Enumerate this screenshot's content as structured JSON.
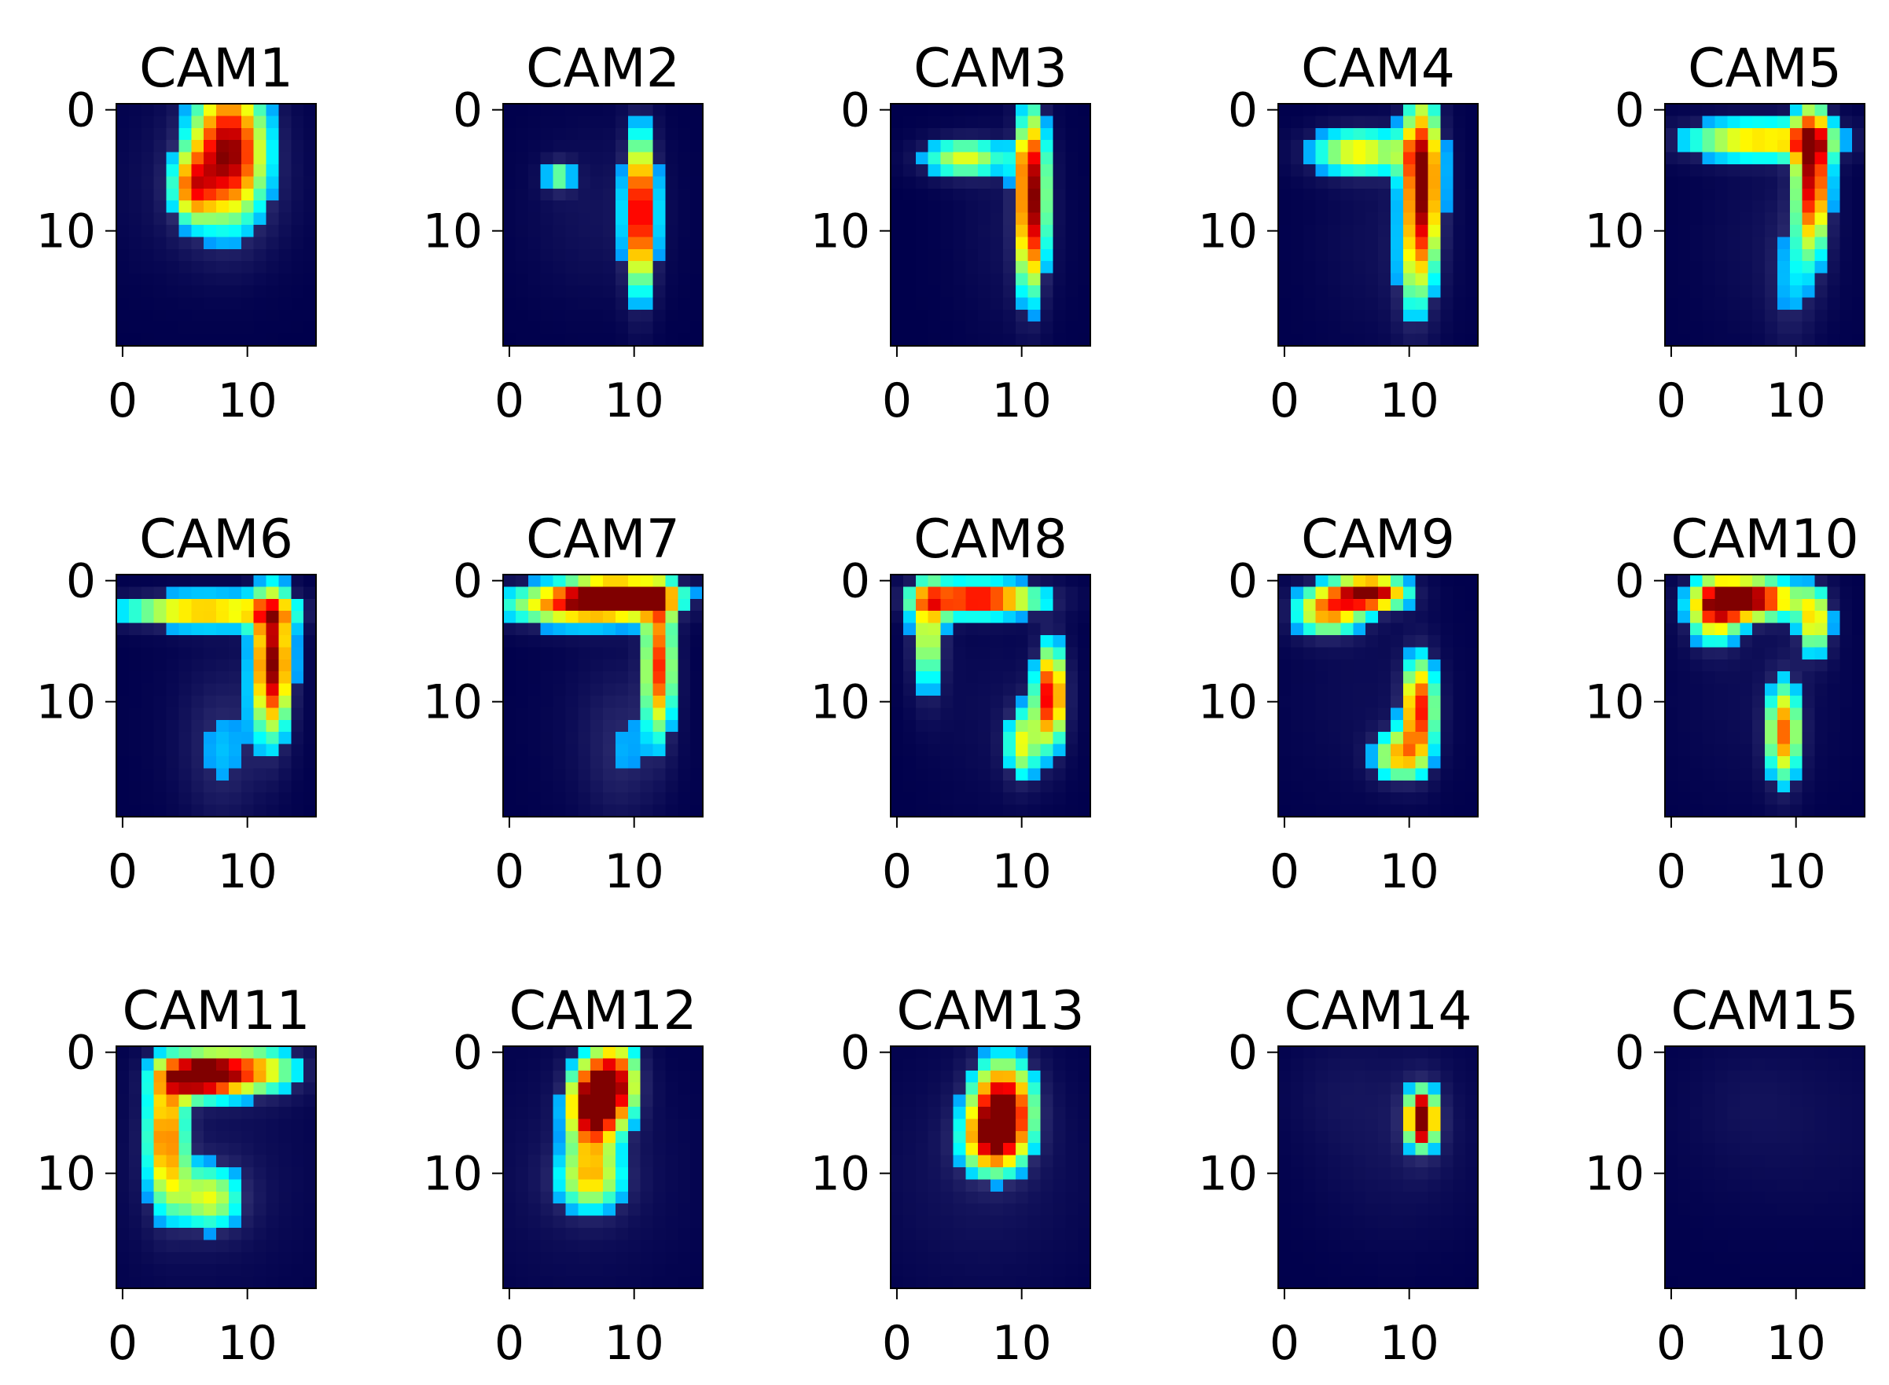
{
  "figure": {
    "title": ""
  },
  "chart_data": {
    "type": "heatmap",
    "layout": {
      "rows": 3,
      "cols": 5
    },
    "colormap": "jet",
    "background_color": "#00004c",
    "grid": false,
    "panels": [
      {
        "title": "CAM1",
        "description_blobs": [
          [
            3.5,
            8.5,
            4.2,
            2.2,
            1.0
          ],
          [
            6.5,
            5.5,
            2.0,
            1.2,
            0.55
          ]
        ],
        "haze": [
          [
            6.5,
            7,
            5,
            5,
            0.18
          ]
        ]
      },
      {
        "title": "CAM2",
        "description_blobs": [
          [
            8.5,
            10.5,
            4.5,
            0.9,
            1.0
          ],
          [
            5.5,
            4.0,
            1.0,
            0.9,
            0.45
          ]
        ],
        "haze": [
          [
            8.5,
            7,
            5,
            4,
            0.15
          ]
        ]
      },
      {
        "title": "CAM3",
        "description_blobs": [
          [
            7.0,
            10.8,
            5.0,
            0.9,
            1.0
          ],
          [
            4.0,
            5.5,
            1.2,
            2.5,
            0.55
          ],
          [
            13,
            10.5,
            3,
            0.8,
            0.15
          ]
        ],
        "haze": [
          [
            10,
            9,
            6,
            3,
            0.12
          ]
        ]
      },
      {
        "title": "CAM4",
        "description_blobs": [
          [
            6.5,
            11.0,
            5.5,
            1.1,
            1.0
          ],
          [
            3.5,
            6.0,
            1.4,
            2.8,
            0.6
          ],
          [
            14,
            10,
            3.5,
            1.0,
            0.2
          ]
        ],
        "haze": [
          [
            11,
            8,
            6,
            4,
            0.12
          ]
        ]
      },
      {
        "title": "CAM5",
        "description_blobs": [
          [
            5.5,
            11.3,
            4.5,
            1.0,
            0.95
          ],
          [
            2.5,
            7.0,
            1.2,
            4.5,
            0.65
          ],
          [
            14,
            9.5,
            4,
            1.2,
            0.22
          ]
        ],
        "haze": [
          [
            11,
            8,
            6,
            4,
            0.12
          ]
        ]
      },
      {
        "title": "CAM6",
        "description_blobs": [
          [
            6.8,
            12.0,
            4.2,
            1.1,
            1.0
          ],
          [
            2.5,
            6.5,
            1.0,
            5.0,
            0.7
          ],
          [
            14,
            8,
            4,
            2,
            0.22
          ]
        ],
        "haze": [
          [
            12,
            8,
            6,
            4,
            0.1
          ]
        ]
      },
      {
        "title": "CAM7",
        "description_blobs": [
          [
            1.2,
            9.0,
            1.0,
            3.0,
            0.95
          ],
          [
            2.0,
            5.5,
            1.3,
            4.5,
            0.7
          ],
          [
            7.0,
            12.0,
            4.0,
            0.9,
            0.8
          ],
          [
            14,
            9,
            4,
            2,
            0.2
          ]
        ],
        "haze": [
          [
            12,
            8,
            6,
            4,
            0.1
          ]
        ]
      },
      {
        "title": "CAM8",
        "description_blobs": [
          [
            1.5,
            6.5,
            1.0,
            3.5,
            0.95
          ],
          [
            9.5,
            12.3,
            3.0,
            0.9,
            0.9
          ],
          [
            13.5,
            10.0,
            2.2,
            1.0,
            0.55
          ],
          [
            4.5,
            2.5,
            3.5,
            1.0,
            0.55
          ]
        ],
        "haze": [
          [
            11,
            8,
            6,
            4,
            0.1
          ]
        ]
      },
      {
        "title": "CAM9",
        "description_blobs": [
          [
            1.0,
            7.0,
            1.0,
            2.0,
            1.0
          ],
          [
            2.5,
            3.5,
            1.5,
            2.0,
            0.7
          ],
          [
            10.5,
            10.8,
            3.0,
            1.0,
            0.85
          ],
          [
            14.5,
            9.0,
            1.5,
            1.4,
            0.6
          ]
        ],
        "haze": [
          [
            10,
            7,
            6,
            5,
            0.1
          ]
        ]
      },
      {
        "title": "CAM10",
        "description_blobs": [
          [
            1.5,
            6.5,
            1.2,
            2.5,
            1.0
          ],
          [
            2.5,
            3.5,
            2.0,
            1.5,
            0.7
          ],
          [
            12.5,
            9.0,
            3.0,
            1.0,
            0.75
          ],
          [
            3.5,
            11.5,
            2.0,
            1.0,
            0.6
          ]
        ],
        "haze": [
          [
            10,
            7,
            6,
            5,
            0.1
          ]
        ]
      },
      {
        "title": "CAM11",
        "description_blobs": [
          [
            2.0,
            6.0,
            1.2,
            2.0,
            1.0
          ],
          [
            7.0,
            3.5,
            4.0,
            1.2,
            0.75
          ],
          [
            1.5,
            10.0,
            1.5,
            3.0,
            0.7
          ],
          [
            12.0,
            7.0,
            2.0,
            2.0,
            0.55
          ]
        ],
        "haze": [
          [
            10,
            7,
            7,
            6,
            0.14
          ]
        ]
      },
      {
        "title": "CAM12",
        "description_blobs": [
          [
            4.5,
            6.5,
            2.5,
            1.4,
            1.0
          ],
          [
            2.5,
            8.5,
            2.5,
            1.4,
            0.85
          ],
          [
            10.5,
            6.5,
            2.0,
            2.0,
            0.6
          ]
        ],
        "haze": [
          [
            10,
            6,
            7,
            6,
            0.14
          ]
        ]
      },
      {
        "title": "CAM13",
        "description_blobs": [
          [
            4.5,
            8.5,
            2.8,
            1.8,
            1.0
          ],
          [
            7.5,
            7.5,
            2.0,
            1.8,
            0.6
          ]
        ],
        "haze": [
          [
            10,
            7,
            7,
            6,
            0.16
          ]
        ]
      },
      {
        "title": "CAM14",
        "description_blobs": [
          [
            5.5,
            11.0,
            1.2,
            0.6,
            1.0
          ],
          [
            5.5,
            11.0,
            2.2,
            1.2,
            0.55
          ]
        ],
        "haze": [
          [
            7,
            9,
            6,
            5,
            0.16
          ],
          [
            3,
            4,
            3,
            3,
            0.08
          ]
        ]
      },
      {
        "title": "CAM15",
        "description_blobs": [],
        "haze": [
          [
            6,
            10,
            6,
            7,
            0.11
          ],
          [
            4,
            6,
            3,
            3,
            0.06
          ]
        ]
      }
    ],
    "image_shape": {
      "height": 20,
      "width": 16
    },
    "x_ticks": [
      0,
      10
    ],
    "y_ticks": [
      0,
      10
    ],
    "x_tick_labels": [
      "0",
      "10"
    ],
    "y_tick_labels": [
      "0",
      "10"
    ],
    "xlim": [
      -0.5,
      15.5
    ],
    "ylim": [
      19.5,
      -0.5
    ],
    "xlabel": "",
    "ylabel": ""
  }
}
